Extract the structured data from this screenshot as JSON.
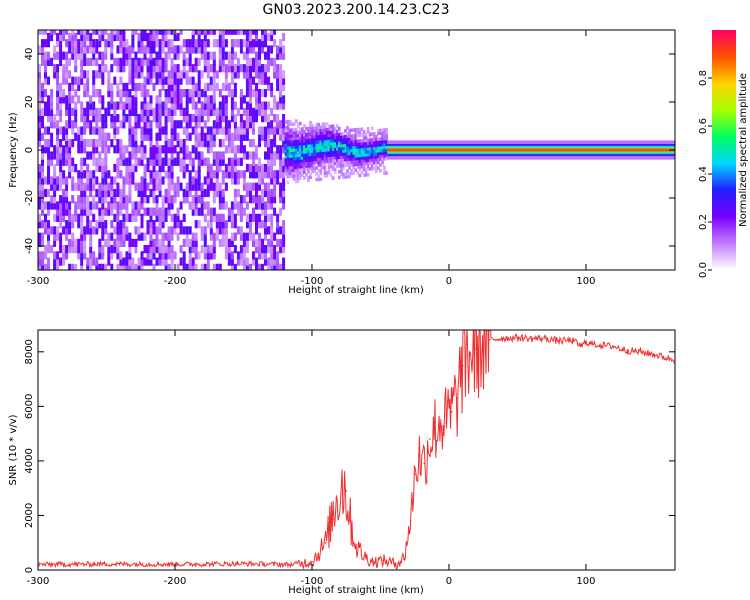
{
  "figure": {
    "title": "GN03.2023.200.14.23.C23"
  },
  "chart_data": [
    {
      "type": "heatmap",
      "title": "",
      "xlabel": "Height of straight line (km)",
      "ylabel": "Frequency (Hz)",
      "xlim": [
        -300,
        165
      ],
      "ylim": [
        -50,
        50
      ],
      "xticks": [
        -300,
        -200,
        -100,
        0,
        100
      ],
      "yticks": [
        -40,
        -20,
        0,
        20,
        40
      ],
      "colorbar": {
        "label": "Normalized spectral amplitude",
        "range": [
          0,
          1
        ],
        "ticks": [
          "0.0",
          "0.2",
          "0.4",
          "0.6",
          "0.8"
        ],
        "colors": [
          "#ffffff",
          "#c27cff",
          "#7a00ff",
          "#2020ff",
          "#00d5ff",
          "#00ff60",
          "#a8ff00",
          "#ffd000",
          "#ff5000",
          "#ff0066"
        ]
      },
      "regions": [
        {
          "x_range": [
            -300,
            -120
          ],
          "f_range": [
            -50,
            50
          ],
          "amplitude": 0.05,
          "description_value": "broadband noise"
        },
        {
          "x_range": [
            -120,
            -45
          ],
          "f_center": 0,
          "f_halfwidth": 8,
          "amplitude": 0.3
        },
        {
          "x_range": [
            -45,
            165
          ],
          "f_center": 0,
          "f_halfwidth": 2.5,
          "amplitude": 0.9
        }
      ]
    },
    {
      "type": "line",
      "title": "",
      "xlabel": "Height of straight line (km)",
      "ylabel": "SNR (10 * v/v)",
      "xlim": [
        -300,
        165
      ],
      "ylim": [
        0,
        8800
      ],
      "xticks": [
        -300,
        -200,
        -100,
        0,
        100
      ],
      "yticks": [
        0,
        2000,
        4000,
        6000,
        8000
      ],
      "color": "#f03030",
      "series": [
        {
          "x": [
            -300,
            -250,
            -200,
            -150,
            -115,
            -100,
            -90,
            -82,
            -78,
            -75,
            -72,
            -68,
            -62,
            -55,
            -48,
            -40,
            -33,
            -28,
            -25,
            -22,
            -18,
            -14,
            -10,
            -6,
            -2,
            2,
            6,
            10,
            15,
            20,
            25,
            30,
            40,
            50,
            60,
            70,
            80,
            90,
            97,
            100,
            103,
            110,
            120,
            130,
            140,
            150,
            165
          ],
          "y": [
            200,
            220,
            210,
            230,
            200,
            300,
            1000,
            2600,
            3200,
            2900,
            1800,
            900,
            500,
            300,
            350,
            250,
            400,
            1800,
            3500,
            4200,
            3900,
            4800,
            5200,
            5500,
            5400,
            5800,
            6300,
            7500,
            7900,
            8100,
            8300,
            8450,
            8500,
            8520,
            8480,
            8500,
            8400,
            8420,
            8200,
            8380,
            8300,
            8250,
            8200,
            8050,
            8000,
            7900,
            7700
          ]
        }
      ]
    }
  ]
}
